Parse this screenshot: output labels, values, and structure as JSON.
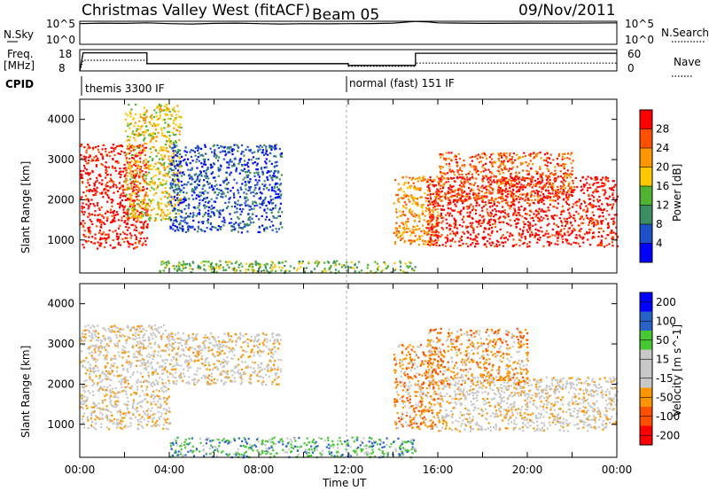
{
  "header": {
    "station": "Christmas Valley West (fitACF)",
    "beam": "Beam 05",
    "date": "09/Nov/2011"
  },
  "strip_labels": {
    "nsky": "N.Sky",
    "nsearch": "N.Search",
    "freq": "Freq.",
    "freq_unit": "[MHz]",
    "nave": "Nave",
    "cpid": "CPID",
    "nsky_top": "10^5",
    "nsky_bottom": "10^0",
    "nsearch_top": "10^5",
    "nsearch_bottom": "10^0",
    "freq_top": "18",
    "freq_bottom": "8",
    "nave_top": "60",
    "nave_bottom": "0",
    "cpid_seg1": "themis 3300 IF",
    "cpid_seg2": "normal (fast) 151 IF"
  },
  "colors": {
    "power_scale": [
      "#0000ff",
      "#1e50c8",
      "#3c8c64",
      "#50b432",
      "#ffc800",
      "#ff9600",
      "#ff5000",
      "#ff0000"
    ],
    "velocity_scale": [
      "#0000ff",
      "#2864c8",
      "#46c832",
      "#c8c8c8",
      "#c8c8c8",
      "#ff9600",
      "#ff5000",
      "#ff0000"
    ]
  },
  "chart_data": [
    {
      "type": "line",
      "name": "nsky-nsearch-strip",
      "x_range": [
        0,
        24
      ],
      "y_range_left": [
        1,
        100000
      ],
      "y_scale": "log",
      "series": [
        {
          "name": "N.Sky",
          "x": [
            0,
            1,
            2,
            3,
            4,
            5,
            6,
            7,
            8,
            9,
            10,
            11,
            12,
            13,
            14,
            14.5,
            15,
            15.3,
            15.6,
            16,
            18,
            20,
            22,
            24
          ],
          "y": [
            30000,
            40000,
            35000,
            45000,
            30000,
            25000,
            35000,
            40000,
            30000,
            25000,
            30000,
            28000,
            30000,
            32000,
            40000,
            60000,
            90000,
            80000,
            70000,
            45000,
            35000,
            40000,
            38000,
            45000
          ]
        }
      ]
    },
    {
      "type": "line",
      "name": "freq-nave-strip",
      "x_range": [
        0,
        24
      ],
      "y_range_left": [
        8,
        18
      ],
      "y_range_right": [
        0,
        60
      ],
      "series": [
        {
          "name": "Freq.",
          "x": [
            0,
            0.15,
            3,
            3,
            12,
            12,
            15,
            15,
            24
          ],
          "y": [
            8,
            16.5,
            16.5,
            11.4,
            11.4,
            10.6,
            10.6,
            16.3,
            16.3
          ]
        },
        {
          "name": "Nave",
          "x": [
            0,
            0.15,
            3,
            3,
            12,
            12,
            15,
            15,
            24
          ],
          "y": [
            0,
            30,
            30,
            20,
            20,
            13,
            13,
            22,
            22
          ]
        }
      ]
    },
    {
      "type": "heatmap",
      "name": "power-panel",
      "x_range": [
        0,
        24
      ],
      "y_range": [
        180,
        4500
      ],
      "ylabel": "Slant Range [km]",
      "x_ticks": [
        0,
        2,
        4,
        6,
        8,
        10,
        12,
        14,
        16,
        18,
        20,
        22,
        24
      ],
      "y_ticks": [
        1000,
        2000,
        3000,
        4000
      ],
      "colorbar_label": "Power [dB]",
      "colorbar_ticks": [
        "28",
        "24",
        "20",
        "16",
        "12",
        "8",
        "4"
      ],
      "regions": [
        {
          "x0": 0,
          "x1": 3,
          "y0": 800,
          "y1": 3400,
          "level": 7
        },
        {
          "x0": 2,
          "x1": 4.5,
          "y0": 1500,
          "y1": 4400,
          "level": 4
        },
        {
          "x0": 4,
          "x1": 9,
          "y0": 1200,
          "y1": 3400,
          "level": 1
        },
        {
          "x0": 3.5,
          "x1": 15,
          "y0": 200,
          "y1": 500,
          "level": 3
        },
        {
          "x0": 14,
          "x1": 16,
          "y0": 900,
          "y1": 2600,
          "level": 5
        },
        {
          "x0": 15.5,
          "x1": 24,
          "y0": 850,
          "y1": 2600,
          "level": 7
        },
        {
          "x0": 16,
          "x1": 22,
          "y0": 2000,
          "y1": 3200,
          "level": 6
        }
      ]
    },
    {
      "type": "heatmap",
      "name": "velocity-panel",
      "x_range": [
        0,
        24
      ],
      "y_range": [
        180,
        4500
      ],
      "xlabel": "Time UT",
      "ylabel": "Slant Range [km]",
      "x_ticks": [
        0,
        2,
        4,
        6,
        8,
        10,
        12,
        14,
        16,
        18,
        20,
        22,
        24
      ],
      "x_tick_labels": [
        "00:00",
        "04:00",
        "08:00",
        "12:00",
        "16:00",
        "20:00",
        "00:00"
      ],
      "x_tick_label_positions": [
        0,
        4,
        8,
        12,
        16,
        20,
        24
      ],
      "y_ticks": [
        1000,
        2000,
        3000,
        4000
      ],
      "colorbar_label": "Velocity [m s^-1]",
      "colorbar_ticks": [
        "200",
        "100",
        "50",
        "15",
        "-15",
        "-50",
        "-100",
        "-200"
      ],
      "regions": [
        {
          "x0": 0,
          "x1": 4,
          "y0": 900,
          "y1": 3500,
          "level": 3
        },
        {
          "x0": 4,
          "x1": 9,
          "y0": 2000,
          "y1": 3300,
          "level": 3
        },
        {
          "x0": 4,
          "x1": 15,
          "y0": 200,
          "y1": 700,
          "level": 5
        },
        {
          "x0": 14,
          "x1": 16,
          "y0": 900,
          "y1": 3000,
          "level": 2
        },
        {
          "x0": 16,
          "x1": 24,
          "y0": 850,
          "y1": 2200,
          "level": 3
        },
        {
          "x0": 15.5,
          "x1": 20,
          "y0": 2000,
          "y1": 3400,
          "level": 2
        }
      ]
    }
  ]
}
